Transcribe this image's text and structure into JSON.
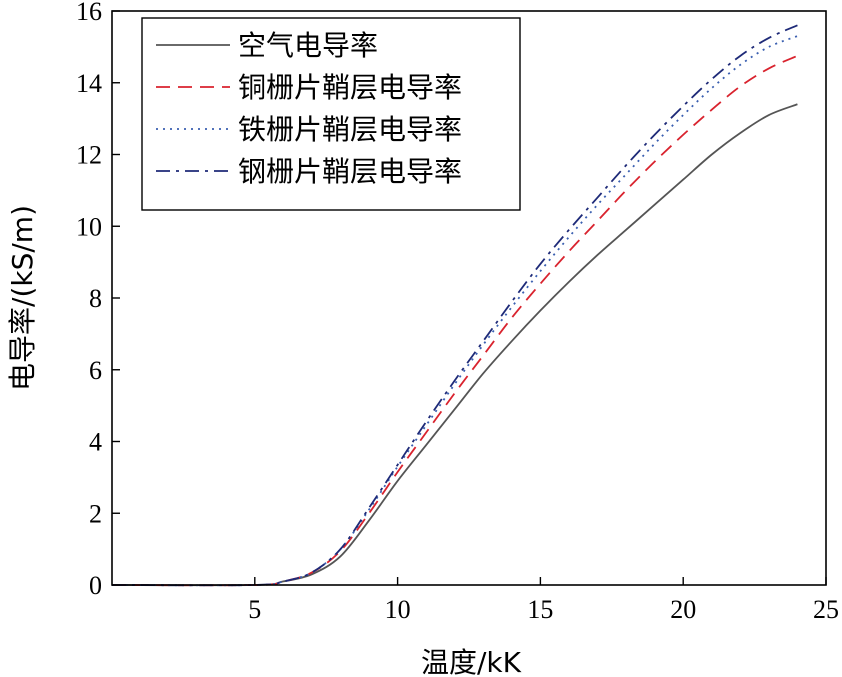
{
  "chart_data": {
    "type": "line",
    "xlabel": "温度/kK",
    "ylabel": "电导率/(kS/m)",
    "xlim": [
      0,
      25
    ],
    "ylim": [
      0,
      16
    ],
    "xticks": [
      5,
      10,
      15,
      20,
      25
    ],
    "yticks": [
      0,
      2,
      4,
      6,
      8,
      10,
      12,
      14,
      16
    ],
    "grid": false,
    "legend_position": "top-left",
    "x": [
      0,
      5,
      6,
      7,
      8,
      9,
      10,
      11,
      12,
      13,
      14,
      15,
      16,
      17,
      18,
      19,
      20,
      21,
      22,
      23,
      24
    ],
    "series": [
      {
        "name": "空气电导率",
        "color": "#555555",
        "dash": "solid",
        "values": [
          0,
          0,
          0.1,
          0.3,
          0.8,
          1.8,
          2.9,
          3.9,
          4.9,
          5.9,
          6.8,
          7.65,
          8.45,
          9.2,
          9.9,
          10.6,
          11.3,
          12.0,
          12.6,
          13.1,
          13.4
        ]
      },
      {
        "name": "铜栅片鞘层电导率",
        "color": "#d9232e",
        "dash": "dashed",
        "values": [
          0,
          0,
          0.1,
          0.35,
          0.95,
          2.0,
          3.15,
          4.25,
          5.35,
          6.4,
          7.45,
          8.4,
          9.3,
          10.15,
          11.0,
          11.8,
          12.55,
          13.25,
          13.9,
          14.4,
          14.75
        ]
      },
      {
        "name": "铁栅片鞘层电导率",
        "color": "#3a5fb0",
        "dash": "dotted",
        "values": [
          0,
          0,
          0.1,
          0.35,
          1.0,
          2.1,
          3.3,
          4.45,
          5.6,
          6.7,
          7.75,
          8.75,
          9.7,
          10.6,
          11.45,
          12.3,
          13.1,
          13.85,
          14.5,
          15.0,
          15.3
        ]
      },
      {
        "name": "钢栅片鞘层电导率",
        "color": "#1e2a78",
        "dash": "dashdot",
        "values": [
          0,
          0,
          0.1,
          0.35,
          1.0,
          2.15,
          3.35,
          4.55,
          5.7,
          6.8,
          7.9,
          8.95,
          9.9,
          10.8,
          11.7,
          12.55,
          13.35,
          14.1,
          14.75,
          15.25,
          15.6
        ]
      }
    ]
  }
}
